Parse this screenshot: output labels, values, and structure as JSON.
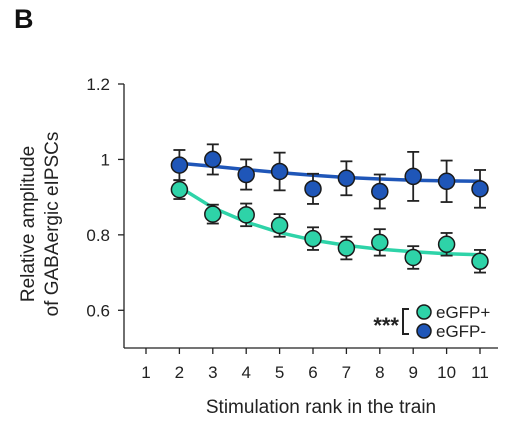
{
  "panel_label": "B",
  "chart_data": {
    "type": "scatter",
    "xlabel": "Stimulation rank in the train",
    "ylabel_lines": [
      "Relative amplitude",
      "of GABAergic eIPSCs"
    ],
    "xlim": [
      1,
      11
    ],
    "ylim": [
      0.5,
      1.2
    ],
    "xticks": [
      1,
      2,
      3,
      4,
      5,
      6,
      7,
      8,
      9,
      10,
      11
    ],
    "yticks": [
      0.6,
      0.8,
      1,
      1.2
    ],
    "ytick_labels": [
      "0.6",
      "0.8",
      "1",
      "1.2"
    ],
    "grid": false,
    "legend_position": "bottom-right",
    "significance": "***",
    "series": [
      {
        "name": "eGFP+",
        "color": "#2ed3a8",
        "x": [
          2,
          3,
          4,
          5,
          6,
          7,
          8,
          9,
          10,
          11
        ],
        "y": [
          0.92,
          0.855,
          0.853,
          0.825,
          0.79,
          0.765,
          0.78,
          0.74,
          0.775,
          0.73
        ],
        "err": [
          0.025,
          0.025,
          0.03,
          0.03,
          0.03,
          0.03,
          0.035,
          0.03,
          0.03,
          0.03
        ],
        "fit": [
          0.927,
          0.872,
          0.834,
          0.806,
          0.786,
          0.772,
          0.762,
          0.755,
          0.75,
          0.747
        ]
      },
      {
        "name": "eGFP-",
        "color": "#1f56b8",
        "x": [
          2,
          3,
          4,
          5,
          6,
          7,
          8,
          9,
          10,
          11
        ],
        "y": [
          0.985,
          1.0,
          0.96,
          0.968,
          0.922,
          0.95,
          0.915,
          0.955,
          0.942,
          0.922
        ],
        "err": [
          0.04,
          0.04,
          0.04,
          0.05,
          0.04,
          0.045,
          0.045,
          0.065,
          0.055,
          0.05
        ],
        "fit": [
          0.99,
          0.982,
          0.973,
          0.965,
          0.958,
          0.952,
          0.948,
          0.945,
          0.943,
          0.942
        ]
      }
    ]
  }
}
